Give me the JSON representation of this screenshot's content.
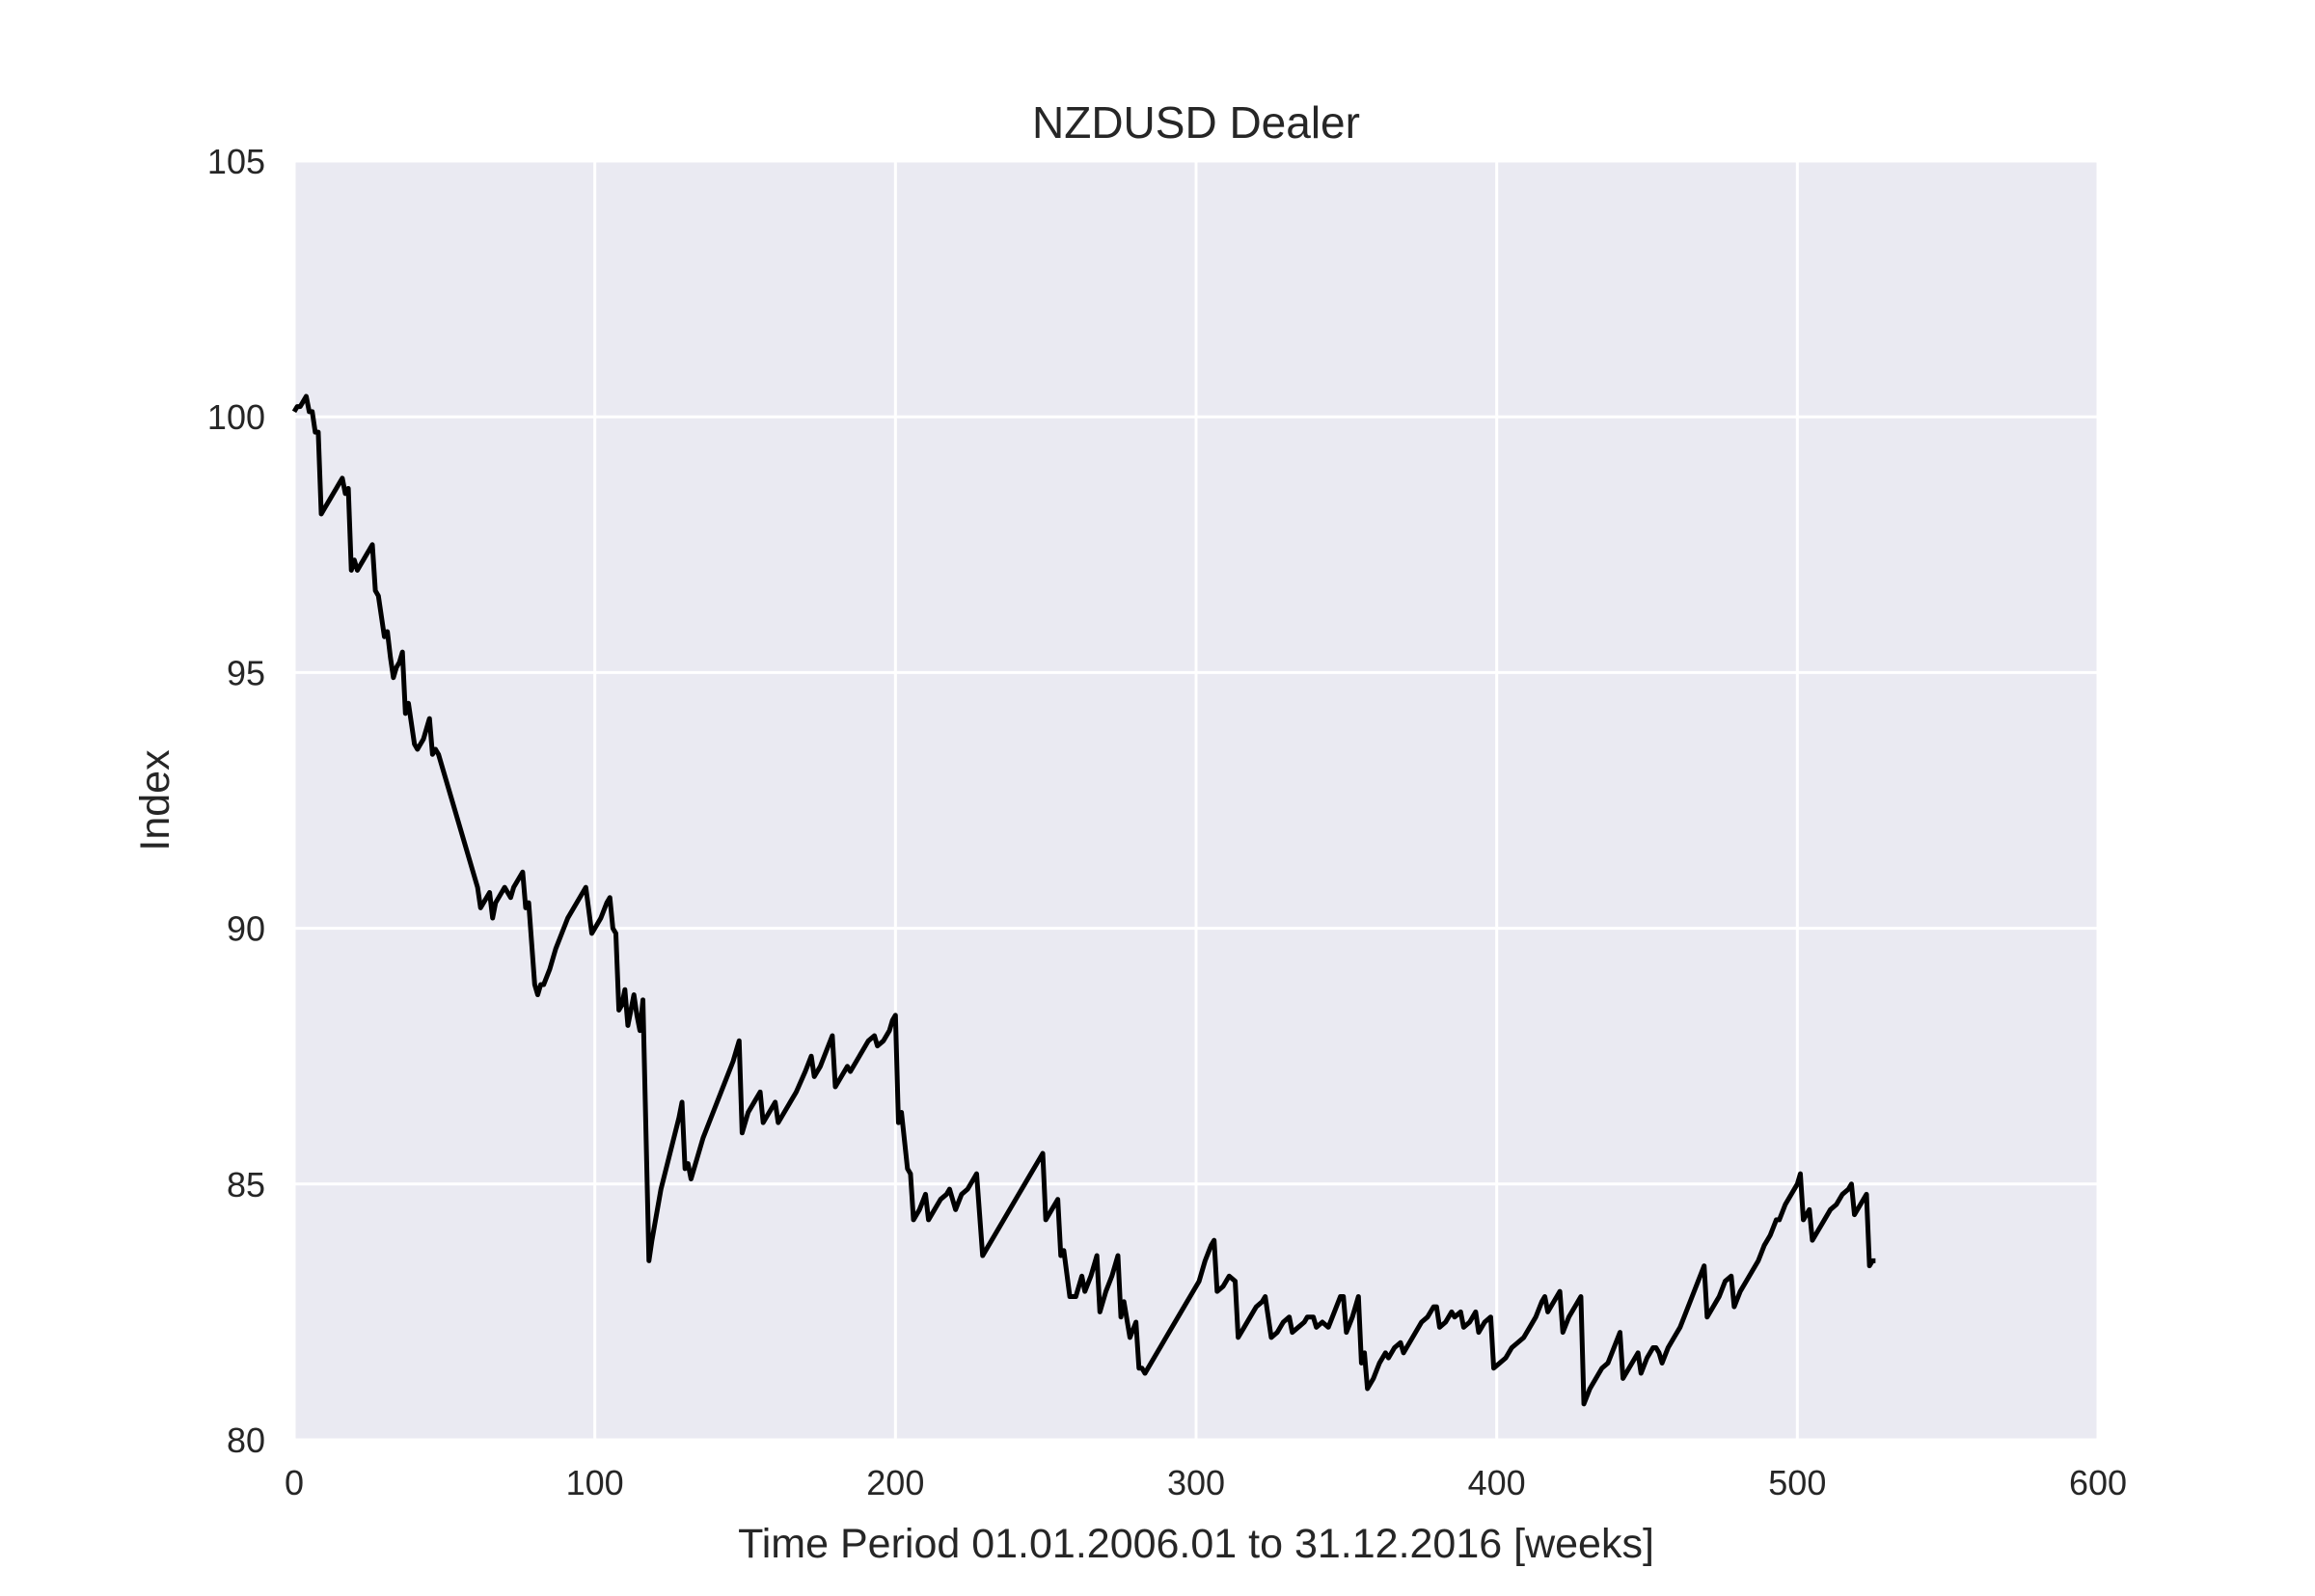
{
  "chart_data": {
    "type": "line",
    "title": "NZDUSD Dealer",
    "xlabel": "Time Period 01.01.2006.01 to 31.12.2016 [weeks]",
    "ylabel": "Index",
    "xlim": [
      0,
      600
    ],
    "ylim": [
      80,
      105
    ],
    "xticks": [
      0,
      100,
      200,
      300,
      400,
      500,
      600
    ],
    "yticks": [
      80,
      85,
      90,
      95,
      100,
      105
    ],
    "grid": true,
    "legend": "none",
    "colors": {
      "background": "#eaeaf2",
      "grid": "#ffffff",
      "line": "#000000",
      "text": "#262626"
    },
    "series": [
      {
        "points": [
          [
            0,
            100.1
          ],
          [
            1,
            100.2
          ],
          [
            2,
            100.2
          ],
          [
            3,
            100.3
          ],
          [
            4,
            100.4
          ],
          [
            5,
            100.1
          ],
          [
            6,
            100.1
          ],
          [
            7,
            99.7
          ],
          [
            8,
            99.7
          ],
          [
            9,
            98.1
          ],
          [
            10,
            98.2
          ],
          [
            11,
            98.3
          ],
          [
            12,
            98.4
          ],
          [
            13,
            98.5
          ],
          [
            14,
            98.6
          ],
          [
            15,
            98.7
          ],
          [
            16,
            98.8
          ],
          [
            17,
            98.5
          ],
          [
            18,
            98.6
          ],
          [
            19,
            97.0
          ],
          [
            20,
            97.2
          ],
          [
            21,
            97.0
          ],
          [
            22,
            97.1
          ],
          [
            23,
            97.2
          ],
          [
            24,
            97.3
          ],
          [
            25,
            97.4
          ],
          [
            26,
            97.5
          ],
          [
            27,
            96.6
          ],
          [
            28,
            96.5
          ],
          [
            29,
            96.1
          ],
          [
            30,
            95.7
          ],
          [
            31,
            95.8
          ],
          [
            32,
            95.3
          ],
          [
            33,
            94.9
          ],
          [
            34,
            95.1
          ],
          [
            35,
            95.2
          ],
          [
            36,
            95.4
          ],
          [
            37,
            94.2
          ],
          [
            38,
            94.4
          ],
          [
            39,
            94.0
          ],
          [
            40,
            93.6
          ],
          [
            41,
            93.5
          ],
          [
            42,
            93.6
          ],
          [
            43,
            93.7
          ],
          [
            44,
            93.9
          ],
          [
            45,
            94.1
          ],
          [
            46,
            93.4
          ],
          [
            47,
            93.5
          ],
          [
            48,
            93.4
          ],
          [
            61,
            90.8
          ],
          [
            62,
            90.4
          ],
          [
            63,
            90.5
          ],
          [
            65,
            90.7
          ],
          [
            66,
            90.2
          ],
          [
            67,
            90.5
          ],
          [
            69,
            90.7
          ],
          [
            70,
            90.8
          ],
          [
            72,
            90.6
          ],
          [
            73,
            90.8
          ],
          [
            74,
            90.9
          ],
          [
            76,
            91.1
          ],
          [
            77,
            90.4
          ],
          [
            78,
            90.5
          ],
          [
            80,
            88.9
          ],
          [
            81,
            88.7
          ],
          [
            82,
            88.9
          ],
          [
            83,
            88.9
          ],
          [
            85,
            89.2
          ],
          [
            87,
            89.6
          ],
          [
            89,
            89.9
          ],
          [
            91,
            90.2
          ],
          [
            93,
            90.4
          ],
          [
            95,
            90.6
          ],
          [
            97,
            90.8
          ],
          [
            99,
            89.9
          ],
          [
            100,
            90.0
          ],
          [
            102,
            90.2
          ],
          [
            104,
            90.5
          ],
          [
            105,
            90.6
          ],
          [
            106,
            90.0
          ],
          [
            107,
            89.9
          ],
          [
            108,
            88.4
          ],
          [
            109,
            88.5
          ],
          [
            110,
            88.8
          ],
          [
            111,
            88.1
          ],
          [
            112,
            88.4
          ],
          [
            113,
            88.7
          ],
          [
            114,
            88.3
          ],
          [
            115,
            88.0
          ],
          [
            116,
            88.6
          ],
          [
            118,
            83.5
          ],
          [
            119,
            83.9
          ],
          [
            122,
            84.9
          ],
          [
            125,
            85.6
          ],
          [
            128,
            86.3
          ],
          [
            129,
            86.6
          ],
          [
            130,
            85.3
          ],
          [
            131,
            85.4
          ],
          [
            132,
            85.1
          ],
          [
            134,
            85.5
          ],
          [
            136,
            85.9
          ],
          [
            138,
            86.2
          ],
          [
            140,
            86.5
          ],
          [
            142,
            86.8
          ],
          [
            144,
            87.1
          ],
          [
            146,
            87.4
          ],
          [
            148,
            87.8
          ],
          [
            149,
            86.0
          ],
          [
            151,
            86.4
          ],
          [
            153,
            86.6
          ],
          [
            155,
            86.8
          ],
          [
            156,
            86.2
          ],
          [
            158,
            86.4
          ],
          [
            160,
            86.6
          ],
          [
            161,
            86.2
          ],
          [
            163,
            86.4
          ],
          [
            165,
            86.6
          ],
          [
            167,
            86.8
          ],
          [
            170,
            87.2
          ],
          [
            172,
            87.5
          ],
          [
            173,
            87.1
          ],
          [
            175,
            87.3
          ],
          [
            177,
            87.6
          ],
          [
            179,
            87.9
          ],
          [
            180,
            86.9
          ],
          [
            182,
            87.1
          ],
          [
            184,
            87.3
          ],
          [
            185,
            87.2
          ],
          [
            187,
            87.4
          ],
          [
            189,
            87.6
          ],
          [
            191,
            87.8
          ],
          [
            193,
            87.9
          ],
          [
            194,
            87.7
          ],
          [
            196,
            87.8
          ],
          [
            198,
            88.0
          ],
          [
            199,
            88.2
          ],
          [
            200,
            88.3
          ],
          [
            201,
            86.2
          ],
          [
            202,
            86.4
          ],
          [
            204,
            85.3
          ],
          [
            205,
            85.2
          ],
          [
            206,
            84.3
          ],
          [
            208,
            84.5
          ],
          [
            210,
            84.8
          ],
          [
            211,
            84.3
          ],
          [
            213,
            84.5
          ],
          [
            215,
            84.7
          ],
          [
            217,
            84.8
          ],
          [
            218,
            84.9
          ],
          [
            220,
            84.5
          ],
          [
            222,
            84.8
          ],
          [
            224,
            84.9
          ],
          [
            226,
            85.1
          ],
          [
            227,
            85.2
          ],
          [
            229,
            83.6
          ],
          [
            231,
            83.8
          ],
          [
            233,
            84.0
          ],
          [
            235,
            84.2
          ],
          [
            237,
            84.4
          ],
          [
            239,
            84.6
          ],
          [
            241,
            84.8
          ],
          [
            243,
            85.0
          ],
          [
            245,
            85.2
          ],
          [
            247,
            85.4
          ],
          [
            249,
            85.6
          ],
          [
            250,
            84.3
          ],
          [
            252,
            84.5
          ],
          [
            254,
            84.7
          ],
          [
            255,
            83.6
          ],
          [
            256,
            83.7
          ],
          [
            258,
            82.8
          ],
          [
            260,
            82.8
          ],
          [
            262,
            83.2
          ],
          [
            263,
            82.9
          ],
          [
            265,
            83.2
          ],
          [
            267,
            83.6
          ],
          [
            268,
            82.5
          ],
          [
            270,
            82.9
          ],
          [
            272,
            83.2
          ],
          [
            274,
            83.6
          ],
          [
            275,
            82.4
          ],
          [
            276,
            82.7
          ],
          [
            278,
            82.0
          ],
          [
            280,
            82.3
          ],
          [
            281,
            81.4
          ],
          [
            282,
            81.4
          ],
          [
            283,
            81.3
          ],
          [
            286,
            81.6
          ],
          [
            290,
            82.0
          ],
          [
            294,
            82.4
          ],
          [
            298,
            82.8
          ],
          [
            301,
            83.1
          ],
          [
            303,
            83.5
          ],
          [
            305,
            83.8
          ],
          [
            306,
            83.9
          ],
          [
            307,
            82.9
          ],
          [
            309,
            83.0
          ],
          [
            311,
            83.2
          ],
          [
            313,
            83.1
          ],
          [
            314,
            82.0
          ],
          [
            316,
            82.2
          ],
          [
            318,
            82.4
          ],
          [
            320,
            82.6
          ],
          [
            322,
            82.7
          ],
          [
            323,
            82.8
          ],
          [
            325,
            82.0
          ],
          [
            327,
            82.1
          ],
          [
            329,
            82.3
          ],
          [
            331,
            82.4
          ],
          [
            332,
            82.1
          ],
          [
            334,
            82.2
          ],
          [
            336,
            82.3
          ],
          [
            337,
            82.4
          ],
          [
            339,
            82.4
          ],
          [
            340,
            82.2
          ],
          [
            342,
            82.3
          ],
          [
            344,
            82.2
          ],
          [
            346,
            82.5
          ],
          [
            348,
            82.8
          ],
          [
            349,
            82.8
          ],
          [
            350,
            82.1
          ],
          [
            352,
            82.4
          ],
          [
            354,
            82.8
          ],
          [
            355,
            81.5
          ],
          [
            356,
            81.7
          ],
          [
            357,
            81.0
          ],
          [
            359,
            81.2
          ],
          [
            361,
            81.5
          ],
          [
            363,
            81.7
          ],
          [
            364,
            81.6
          ],
          [
            366,
            81.8
          ],
          [
            368,
            81.9
          ],
          [
            369,
            81.7
          ],
          [
            371,
            81.9
          ],
          [
            373,
            82.1
          ],
          [
            375,
            82.3
          ],
          [
            377,
            82.4
          ],
          [
            379,
            82.6
          ],
          [
            380,
            82.6
          ],
          [
            381,
            82.2
          ],
          [
            383,
            82.3
          ],
          [
            385,
            82.5
          ],
          [
            386,
            82.4
          ],
          [
            388,
            82.5
          ],
          [
            389,
            82.2
          ],
          [
            391,
            82.3
          ],
          [
            393,
            82.5
          ],
          [
            394,
            82.1
          ],
          [
            396,
            82.3
          ],
          [
            398,
            82.4
          ],
          [
            399,
            81.4
          ],
          [
            401,
            81.5
          ],
          [
            403,
            81.6
          ],
          [
            405,
            81.8
          ],
          [
            407,
            81.9
          ],
          [
            409,
            82.0
          ],
          [
            411,
            82.2
          ],
          [
            413,
            82.4
          ],
          [
            415,
            82.7
          ],
          [
            416,
            82.8
          ],
          [
            417,
            82.5
          ],
          [
            419,
            82.7
          ],
          [
            421,
            82.9
          ],
          [
            422,
            82.1
          ],
          [
            424,
            82.4
          ],
          [
            426,
            82.6
          ],
          [
            428,
            82.8
          ],
          [
            429,
            80.7
          ],
          [
            431,
            81.0
          ],
          [
            433,
            81.2
          ],
          [
            435,
            81.4
          ],
          [
            437,
            81.5
          ],
          [
            439,
            81.8
          ],
          [
            441,
            82.1
          ],
          [
            442,
            81.2
          ],
          [
            444,
            81.4
          ],
          [
            446,
            81.6
          ],
          [
            447,
            81.7
          ],
          [
            448,
            81.3
          ],
          [
            450,
            81.6
          ],
          [
            452,
            81.8
          ],
          [
            453,
            81.8
          ],
          [
            454,
            81.7
          ],
          [
            455,
            81.5
          ],
          [
            457,
            81.8
          ],
          [
            459,
            82.0
          ],
          [
            461,
            82.2
          ],
          [
            463,
            82.5
          ],
          [
            465,
            82.8
          ],
          [
            467,
            83.1
          ],
          [
            469,
            83.4
          ],
          [
            470,
            82.4
          ],
          [
            472,
            82.6
          ],
          [
            474,
            82.8
          ],
          [
            476,
            83.1
          ],
          [
            478,
            83.2
          ],
          [
            479,
            82.6
          ],
          [
            481,
            82.9
          ],
          [
            483,
            83.1
          ],
          [
            485,
            83.3
          ],
          [
            487,
            83.5
          ],
          [
            489,
            83.8
          ],
          [
            491,
            84.0
          ],
          [
            493,
            84.3
          ],
          [
            494,
            84.3
          ],
          [
            496,
            84.6
          ],
          [
            498,
            84.8
          ],
          [
            500,
            85.0
          ],
          [
            501,
            85.2
          ],
          [
            502,
            84.3
          ],
          [
            504,
            84.5
          ],
          [
            505,
            83.9
          ],
          [
            507,
            84.1
          ],
          [
            509,
            84.3
          ],
          [
            511,
            84.5
          ],
          [
            513,
            84.6
          ],
          [
            515,
            84.8
          ],
          [
            517,
            84.9
          ],
          [
            518,
            85.0
          ],
          [
            519,
            84.4
          ],
          [
            521,
            84.6
          ],
          [
            523,
            84.8
          ],
          [
            524,
            83.4
          ],
          [
            525,
            83.5
          ],
          [
            526,
            83.5
          ]
        ]
      }
    ]
  }
}
